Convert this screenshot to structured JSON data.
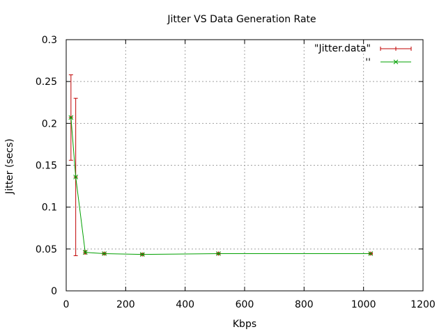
{
  "chart_data": {
    "type": "line",
    "title": "Jitter VS Data Generation Rate",
    "xlabel": "Kbps",
    "ylabel": "Jitter (secs)",
    "xlim": [
      0,
      1200
    ],
    "ylim": [
      0,
      0.3
    ],
    "x_ticks": [
      0,
      200,
      400,
      600,
      800,
      1000,
      1200
    ],
    "y_ticks": [
      0,
      0.05,
      0.1,
      0.15,
      0.2,
      0.25,
      0.3
    ],
    "x_tick_labels": [
      "0",
      "200",
      "400",
      "600",
      "800",
      "1000",
      "1200"
    ],
    "y_tick_labels": [
      "0",
      "0.05",
      "0.1",
      "0.15",
      "0.2",
      "0.25",
      "0.3"
    ],
    "grid": true,
    "legend_position": "top-right",
    "series": [
      {
        "name": "\"Jitter.data\"",
        "style": "errorbars",
        "color": "#c00000",
        "marker": "plus",
        "points": [
          {
            "x": 16,
            "y": 0.207,
            "ylow": 0.156,
            "yhigh": 0.258
          },
          {
            "x": 32,
            "y": 0.136,
            "ylow": 0.042,
            "yhigh": 0.23
          },
          {
            "x": 64,
            "y": 0.046,
            "ylow": 0.044,
            "yhigh": 0.048
          },
          {
            "x": 128,
            "y": 0.0445,
            "ylow": 0.0435,
            "yhigh": 0.0455
          },
          {
            "x": 256,
            "y": 0.0435,
            "ylow": 0.0425,
            "yhigh": 0.0445
          },
          {
            "x": 512,
            "y": 0.0445,
            "ylow": 0.0435,
            "yhigh": 0.0455
          },
          {
            "x": 1024,
            "y": 0.0445,
            "ylow": 0.0435,
            "yhigh": 0.0455
          }
        ]
      },
      {
        "name": "''",
        "style": "linespoints",
        "color": "#00a000",
        "marker": "cross",
        "points": [
          {
            "x": 16,
            "y": 0.207
          },
          {
            "x": 32,
            "y": 0.136
          },
          {
            "x": 64,
            "y": 0.046
          },
          {
            "x": 128,
            "y": 0.0445
          },
          {
            "x": 256,
            "y": 0.0435
          },
          {
            "x": 512,
            "y": 0.0445
          },
          {
            "x": 1024,
            "y": 0.0445
          }
        ]
      }
    ]
  }
}
